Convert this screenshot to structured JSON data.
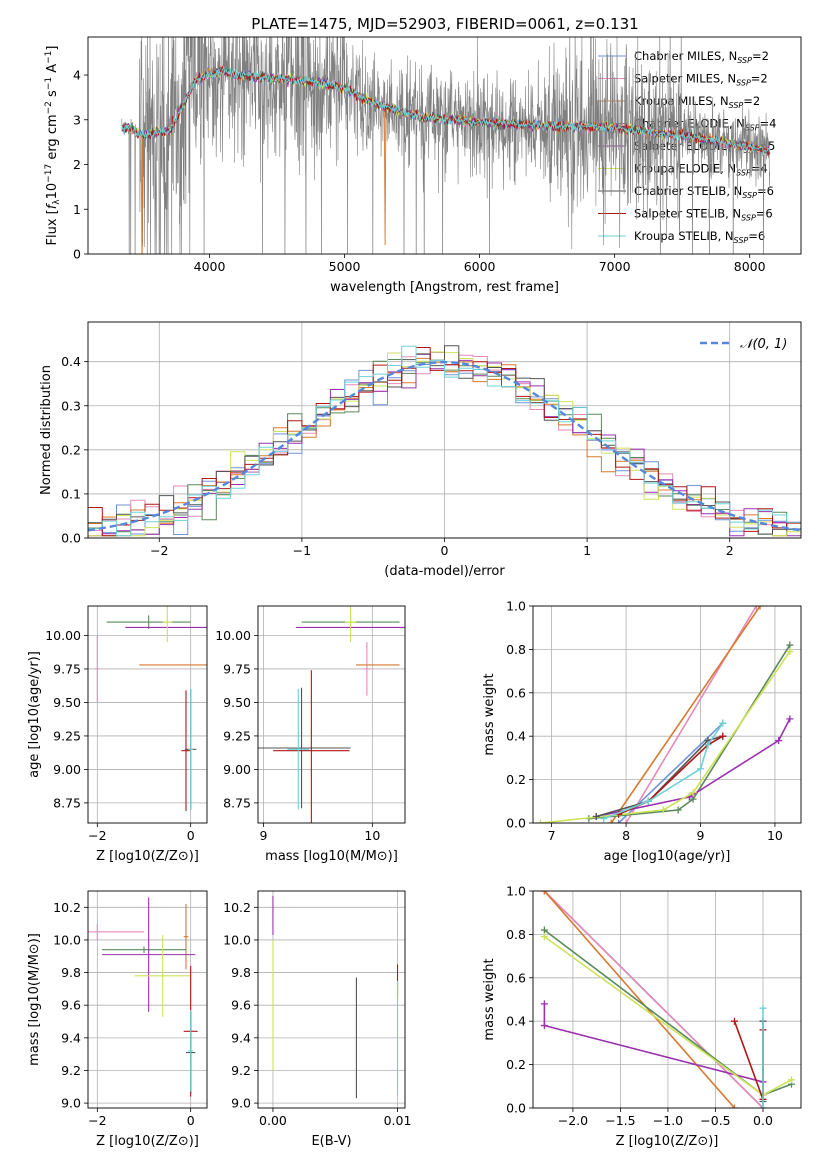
{
  "title": "PLATE=1475, MJD=52903, FIBERID=0061, z=0.131",
  "colors": {
    "chab_miles": "#6f93d6",
    "salp_miles": "#e58ab8",
    "krou_miles": "#d9782d",
    "chab_elodie": "#5a8a5a",
    "salp_elodie": "#9b30b0",
    "krou_elodie": "#cde25a",
    "chab_stelib": "#555555",
    "salp_stelib": "#b01818",
    "krou_stelib": "#6fd0d8",
    "data": "#808080",
    "gauss": "#5588dd",
    "grid": "#b0b0b0"
  },
  "legend": [
    {
      "model": "Chabrier MILES",
      "n": "2"
    },
    {
      "model": "Salpeter MILES",
      "n": "2"
    },
    {
      "model": "Kroupa MILES",
      "n": "2"
    },
    {
      "model": "Chabrier ELODIE",
      "n": "4"
    },
    {
      "model": "Salpeter ELODIE",
      "n": "5"
    },
    {
      "model": "Kroupa ELODIE",
      "n": "4"
    },
    {
      "model": "Chabrier STELIB",
      "n": "6"
    },
    {
      "model": "Salpeter STELIB",
      "n": "6"
    },
    {
      "model": "Kroupa STELIB",
      "n": "6"
    }
  ],
  "chart_data": [
    {
      "type": "line",
      "id": "spectrum",
      "xlabel": "wavelength [Angstrom, rest frame]",
      "ylabel": "Flux [f_λ 10^-17 erg cm^-2 s^-1 A^-1]",
      "xlim": [
        3100,
        8380
      ],
      "ylim": [
        0,
        4.85
      ],
      "xticks": [
        4000,
        5000,
        6000,
        7000,
        8000
      ],
      "yticks": [
        0,
        1,
        2,
        3,
        4
      ],
      "model_continuum": {
        "x": [
          3350,
          3400,
          3500,
          3600,
          3700,
          3800,
          3900,
          4000,
          4100,
          4200,
          4400,
          4600,
          4800,
          5000,
          5200,
          5400,
          5600,
          5800,
          6000,
          6300,
          6600,
          6900,
          7200,
          7500,
          7800,
          8000,
          8150
        ],
        "y": [
          2.8,
          2.85,
          2.65,
          2.7,
          2.75,
          3.3,
          3.9,
          4.0,
          4.1,
          4.0,
          3.95,
          3.9,
          3.85,
          3.7,
          3.4,
          3.2,
          3.05,
          3.0,
          2.95,
          2.9,
          2.85,
          2.85,
          2.75,
          2.65,
          2.5,
          2.4,
          2.3
        ]
      }
    },
    {
      "type": "area",
      "id": "residual-histogram",
      "xlabel": "(data-model)/error",
      "ylabel": "Normed distribution",
      "xlim": [
        -2.5,
        2.5
      ],
      "ylim": [
        0,
        0.49
      ],
      "xticks": [
        -2,
        -1,
        0,
        1,
        2
      ],
      "yticks": [
        0.0,
        0.1,
        0.2,
        0.3,
        0.4
      ],
      "legend": "𝒩(0, 1)",
      "bin_width": 0.1
    },
    {
      "type": "scatter",
      "id": "age-vs-Z",
      "xlabel": "Z [log10(Z/Z⊙)]",
      "ylabel": "age [log10(age/yr)]",
      "xlim": [
        -2.2,
        0.35
      ],
      "ylim": [
        8.6,
        10.22
      ],
      "xticks": [
        -2,
        0
      ],
      "yticks": [
        8.75,
        9.0,
        9.25,
        9.5,
        9.75,
        10.0
      ],
      "points": [
        {
          "s": "salp_miles",
          "x": -2.0,
          "y": 9.75
        },
        {
          "s": "krou_miles",
          "x": -0.1,
          "y": 9.78
        },
        {
          "s": "chab_elodie",
          "x": -0.9,
          "y": 10.1
        },
        {
          "s": "salp_elodie",
          "x": -0.4,
          "y": 10.06
        },
        {
          "s": "krou_elodie",
          "x": -0.5,
          "y": 10.1
        },
        {
          "s": "chab_stelib",
          "x": 0.0,
          "y": 9.15
        },
        {
          "s": "salp_stelib",
          "x": -0.1,
          "y": 9.14
        },
        {
          "s": "krou_stelib",
          "x": 0.0,
          "y": 9.15
        }
      ]
    },
    {
      "type": "scatter",
      "id": "age-vs-mass",
      "xlabel": "mass [log10(M/M⊙)]",
      "ylabel": "",
      "xlim": [
        8.95,
        10.3
      ],
      "ylim": [
        8.6,
        10.22
      ],
      "xticks": [
        9,
        10
      ],
      "yticks": [
        8.75,
        9.0,
        9.25,
        9.5,
        9.75,
        10.0
      ],
      "points": [
        {
          "s": "salp_miles",
          "x": 9.95,
          "y": 9.75
        },
        {
          "s": "krou_miles",
          "x": 10.05,
          "y": 9.78
        },
        {
          "s": "chab_elodie",
          "x": 9.8,
          "y": 10.1
        },
        {
          "s": "salp_elodie",
          "x": 9.9,
          "y": 10.06
        },
        {
          "s": "krou_elodie",
          "x": 9.8,
          "y": 10.1
        },
        {
          "s": "chab_stelib",
          "x": 9.35,
          "y": 9.16
        },
        {
          "s": "salp_stelib",
          "x": 9.44,
          "y": 9.14
        },
        {
          "s": "krou_stelib",
          "x": 9.32,
          "y": 9.15
        }
      ]
    },
    {
      "type": "line",
      "id": "mass-weight-vs-age",
      "xlabel": "age [log10(age/yr)]",
      "ylabel": "mass weight",
      "xlim": [
        6.75,
        10.35
      ],
      "ylim": [
        0,
        1.0
      ],
      "xticks": [
        7,
        8,
        9,
        10
      ],
      "yticks": [
        0.0,
        0.2,
        0.4,
        0.6,
        0.8,
        1.0
      ],
      "series": [
        {
          "s": "chab_miles",
          "x": [
            7.9,
            9.3
          ],
          "y": [
            0.0,
            0.46
          ]
        },
        {
          "s": "salp_miles",
          "x": [
            8.0,
            9.75
          ],
          "y": [
            0.0,
            1.0
          ]
        },
        {
          "s": "krou_miles",
          "x": [
            7.8,
            9.8
          ],
          "y": [
            0.0,
            1.0
          ]
        },
        {
          "s": "chab_elodie",
          "x": [
            7.5,
            8.7,
            8.9,
            10.2
          ],
          "y": [
            0.02,
            0.06,
            0.11,
            0.82
          ]
        },
        {
          "s": "salp_elodie",
          "x": [
            7.6,
            8.85,
            10.05,
            10.2
          ],
          "y": [
            0.03,
            0.12,
            0.38,
            0.48
          ]
        },
        {
          "s": "krou_elodie",
          "x": [
            6.85,
            8.5,
            8.9,
            10.2
          ],
          "y": [
            0.0,
            0.06,
            0.14,
            0.79
          ]
        },
        {
          "s": "chab_stelib",
          "x": [
            7.6,
            8.3,
            9.1,
            9.3
          ],
          "y": [
            0.03,
            0.1,
            0.38,
            0.4
          ]
        },
        {
          "s": "salp_stelib",
          "x": [
            7.9,
            8.3,
            9.1,
            9.3
          ],
          "y": [
            0.04,
            0.1,
            0.36,
            0.4
          ]
        },
        {
          "s": "krou_stelib",
          "x": [
            7.7,
            8.3,
            9.0,
            9.1,
            9.3
          ],
          "y": [
            0.02,
            0.1,
            0.25,
            0.36,
            0.46
          ]
        }
      ]
    },
    {
      "type": "scatter",
      "id": "mass-vs-Z",
      "xlabel": "Z [log10(Z/Z⊙)]",
      "ylabel": "mass [log10(M/M⊙)]",
      "xlim": [
        -2.2,
        0.35
      ],
      "ylim": [
        8.97,
        10.3
      ],
      "xticks": [
        -2,
        0
      ],
      "yticks": [
        9.0,
        9.2,
        9.4,
        9.6,
        9.8,
        10.0,
        10.2
      ],
      "points": [
        {
          "s": "salp_miles",
          "x": -2.0,
          "y": 10.05
        },
        {
          "s": "krou_miles",
          "x": -0.1,
          "y": 10.02
        },
        {
          "s": "chab_elodie",
          "x": -1.0,
          "y": 9.94
        },
        {
          "s": "salp_elodie",
          "x": -0.9,
          "y": 9.91
        },
        {
          "s": "krou_elodie",
          "x": -0.6,
          "y": 9.78
        },
        {
          "s": "chab_stelib",
          "x": 0.0,
          "y": 9.31
        },
        {
          "s": "salp_stelib",
          "x": 0.0,
          "y": 9.44
        },
        {
          "s": "krou_stelib",
          "x": 0.0,
          "y": 9.32
        }
      ]
    },
    {
      "type": "scatter",
      "id": "mass-vs-EBV",
      "xlabel": "E(B-V)",
      "ylabel": "",
      "xlim": [
        -0.0012,
        0.0106
      ],
      "ylim": [
        8.97,
        10.3
      ],
      "xticks": [
        0.0,
        0.01
      ],
      "yticks": [
        9.0,
        9.2,
        9.4,
        9.6,
        9.8,
        10.0,
        10.2
      ],
      "points": [
        {
          "s": "salp_elodie",
          "x": 0.0,
          "y": 10.15
        },
        {
          "s": "krou_elodie",
          "x": 0.0,
          "y": 9.6
        },
        {
          "s": "chab_stelib",
          "x": 0.0067,
          "y": 9.4
        },
        {
          "s": "salp_stelib",
          "x": 0.01,
          "y": 9.75
        },
        {
          "s": "krou_stelib",
          "x": 0.01,
          "y": 9.4
        }
      ]
    },
    {
      "type": "line",
      "id": "mass-weight-vs-Z",
      "xlabel": "Z [log10(Z/Z⊙)]",
      "ylabel": "mass weight",
      "xlim": [
        -2.42,
        0.4
      ],
      "ylim": [
        0,
        1.0
      ],
      "xticks": [
        -2.0,
        -1.5,
        -1.0,
        -0.5,
        0.0
      ],
      "yticks": [
        0.0,
        0.2,
        0.4,
        0.6,
        0.8,
        1.0
      ],
      "series": [
        {
          "s": "chab_miles",
          "x": [
            -2.3,
            0.0
          ],
          "y": [
            1.0,
            0.0
          ]
        },
        {
          "s": "salp_miles",
          "x": [
            -2.3,
            0.0
          ],
          "y": [
            1.0,
            0.0
          ]
        },
        {
          "s": "krou_miles",
          "x": [
            -2.3,
            -0.3
          ],
          "y": [
            1.0,
            0.0
          ]
        },
        {
          "s": "chab_elodie",
          "x": [
            -2.3,
            0.0,
            0.3
          ],
          "y": [
            0.82,
            0.06,
            0.11
          ]
        },
        {
          "s": "salp_elodie",
          "x": [
            -2.3,
            -2.3,
            0.0
          ],
          "y": [
            0.48,
            0.38,
            0.12
          ]
        },
        {
          "s": "krou_elodie",
          "x": [
            -2.3,
            0.0,
            0.3
          ],
          "y": [
            0.79,
            0.06,
            0.13
          ]
        },
        {
          "s": "chab_stelib",
          "x": [
            0.0,
            0.0
          ],
          "y": [
            0.4,
            0.03
          ]
        },
        {
          "s": "salp_stelib",
          "x": [
            -0.3,
            0.0,
            0.0
          ],
          "y": [
            0.4,
            0.04,
            0.36
          ]
        },
        {
          "s": "krou_stelib",
          "x": [
            0.0,
            0.0
          ],
          "y": [
            0.46,
            0.0
          ]
        }
      ]
    }
  ]
}
